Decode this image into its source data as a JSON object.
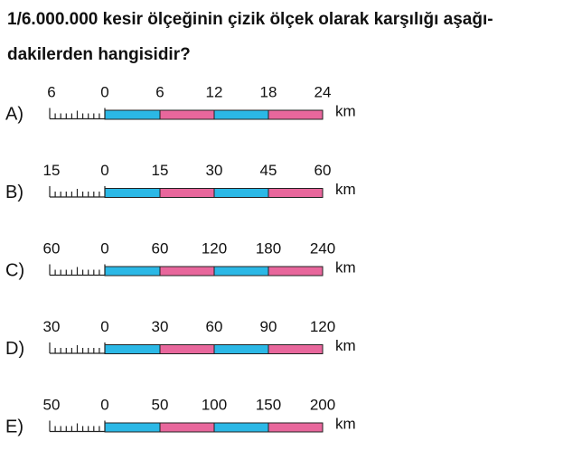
{
  "question": {
    "lines": [
      "1/6.000.000 kesir ölçeğinin çizik ölçek olarak karşılığı aşağı-",
      "dakilerden hangisidir?"
    ]
  },
  "options": [
    {
      "letter": "A)",
      "labels": [
        "6",
        "0",
        "6",
        "12",
        "18",
        "24"
      ],
      "unit": "km"
    },
    {
      "letter": "B)",
      "labels": [
        "15",
        "0",
        "15",
        "30",
        "45",
        "60"
      ],
      "unit": "km"
    },
    {
      "letter": "C)",
      "labels": [
        "60",
        "0",
        "60",
        "120",
        "180",
        "240"
      ],
      "unit": "km"
    },
    {
      "letter": "D)",
      "labels": [
        "30",
        "0",
        "30",
        "60",
        "90",
        "120"
      ],
      "unit": "km"
    },
    {
      "letter": "E)",
      "labels": [
        "50",
        "0",
        "50",
        "100",
        "150",
        "200"
      ],
      "unit": "km"
    }
  ]
}
